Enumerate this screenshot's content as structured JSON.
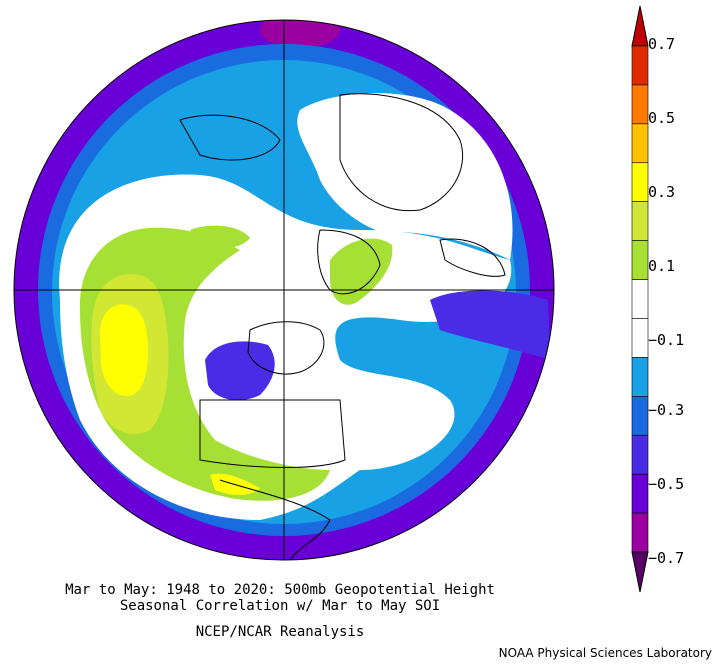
{
  "caption": {
    "line1": "Mar to May: 1948 to 2020: 500mb Geopotential Height",
    "line2": "Seasonal Correlation w/ Mar to May SOI",
    "line3": "NCEP/NCAR Reanalysis"
  },
  "credit": "NOAA Physical Sciences Laboratory",
  "colorbar": {
    "tick_labels": [
      "0.7",
      "0.5",
      "0.3",
      "0.1",
      "−0.1",
      "−0.3",
      "−0.5",
      "−0.7"
    ],
    "colors": [
      "#5a0068",
      "#9b00a0",
      "#6a00d8",
      "#4a2ce6",
      "#1b6be0",
      "#19a1e6",
      "#ffffff",
      "#ffffff",
      "#a7e034",
      "#d2e634",
      "#ffff00",
      "#ffc000",
      "#ff7a00",
      "#e02a00",
      "#c00000"
    ]
  },
  "map": {
    "projection": "north-polar-stereographic",
    "field": "500mb geopotential height correlation with SOI",
    "colors": {
      "deep_purple": "#6a00d8",
      "purple": "#4a2ce6",
      "blue": "#1b6be0",
      "light_blue": "#19a1e6",
      "white": "#ffffff",
      "green": "#a7e034",
      "lime": "#d2e634",
      "yellow": "#ffff00",
      "magenta": "#9b00a0"
    }
  }
}
